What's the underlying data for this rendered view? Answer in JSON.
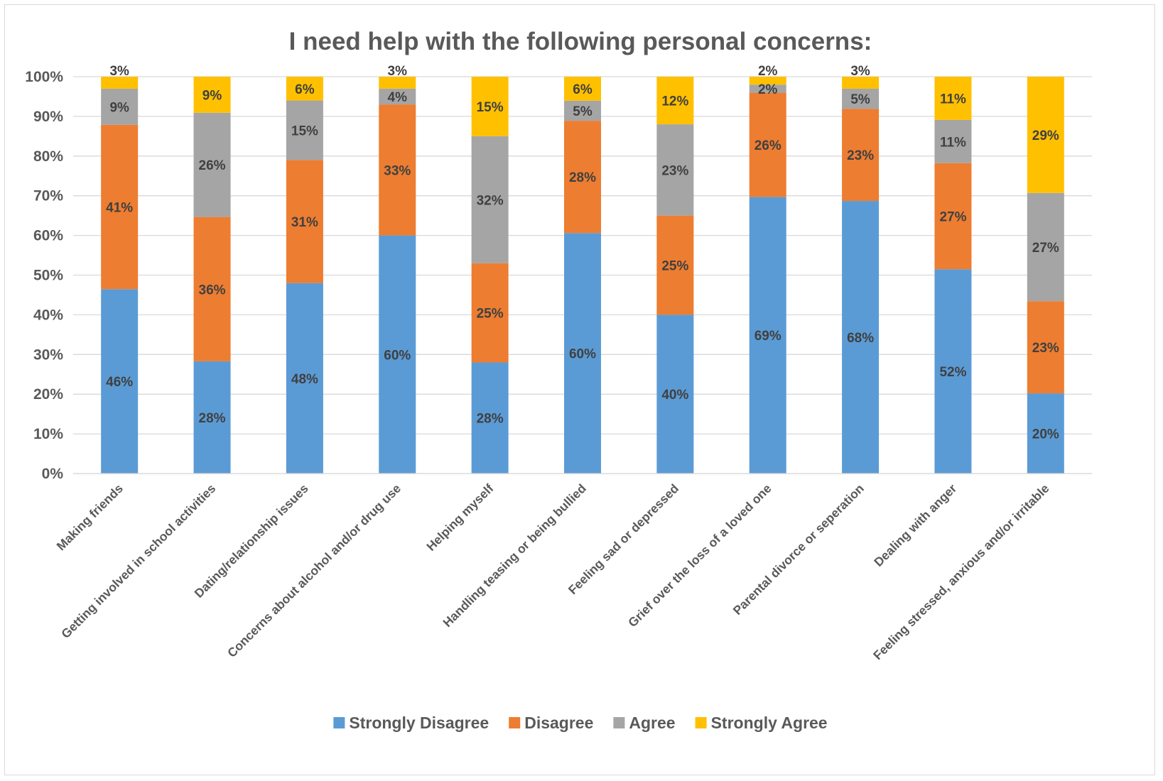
{
  "chart_data": {
    "type": "bar",
    "stacked": true,
    "percent": true,
    "title": "I need help with the following personal concerns:",
    "xlabel": "",
    "ylabel": "",
    "ylim": [
      0,
      100
    ],
    "y_ticks": [
      "0%",
      "10%",
      "20%",
      "30%",
      "40%",
      "50%",
      "60%",
      "70%",
      "80%",
      "90%",
      "100%"
    ],
    "grid": true,
    "legend_position": "bottom",
    "categories": [
      "Making friends",
      "Getting involved in school activities",
      "Dating/relationship issues",
      "Concerns about alcohol and/or drug use",
      "Helping myself",
      "Handling teasing or being bullied",
      "Feeling sad or depressed",
      "Grief over the loss of a loved one",
      "Parental divorce or seperation",
      "Dealing with anger",
      "Feeling stressed, anxious and/or irritable"
    ],
    "series": [
      {
        "name": "Strongly Disagree",
        "color": "#5b9bd5",
        "values": [
          46,
          28,
          48,
          60,
          28,
          60,
          40,
          69,
          68,
          52,
          20
        ]
      },
      {
        "name": "Disagree",
        "color": "#ed7d31",
        "values": [
          41,
          36,
          31,
          33,
          25,
          28,
          25,
          26,
          23,
          27,
          23
        ]
      },
      {
        "name": "Agree",
        "color": "#a5a5a5",
        "values": [
          9,
          26,
          15,
          4,
          32,
          5,
          23,
          2,
          5,
          11,
          27
        ]
      },
      {
        "name": "Strongly Agree",
        "color": "#ffc000",
        "values": [
          3,
          9,
          6,
          3,
          15,
          6,
          12,
          2,
          3,
          11,
          29
        ]
      }
    ]
  }
}
